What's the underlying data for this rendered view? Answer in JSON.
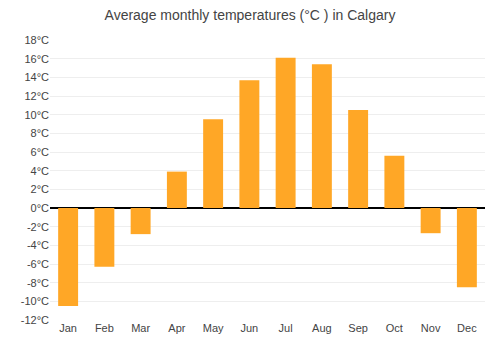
{
  "chart_data": {
    "type": "bar",
    "title": "Average monthly temperatures (°C ) in Calgary",
    "categories": [
      "Jan",
      "Feb",
      "Mar",
      "Apr",
      "May",
      "Jun",
      "Jul",
      "Aug",
      "Sep",
      "Oct",
      "Nov",
      "Dec"
    ],
    "values": [
      -10.5,
      -6.3,
      -2.8,
      3.9,
      9.5,
      13.7,
      16.1,
      15.4,
      10.5,
      5.6,
      -2.7,
      -8.5
    ],
    "color": "#FFA726",
    "ylim": [
      -12,
      18
    ],
    "yticks": [
      {
        "value": -12,
        "label": "-12°C"
      },
      {
        "value": -10,
        "label": "-10°C"
      },
      {
        "value": -8,
        "label": "-8°C"
      },
      {
        "value": -6,
        "label": "-6°C"
      },
      {
        "value": -4,
        "label": "-4°C"
      },
      {
        "value": -2,
        "label": "-2°C"
      },
      {
        "value": 0,
        "label": "0°C"
      },
      {
        "value": 2,
        "label": "2°C"
      },
      {
        "value": 4,
        "label": "4°C"
      },
      {
        "value": 6,
        "label": "6°C"
      },
      {
        "value": 8,
        "label": "8°C"
      },
      {
        "value": 10,
        "label": "10°C"
      },
      {
        "value": 12,
        "label": "12°C"
      },
      {
        "value": 14,
        "label": "14°C"
      },
      {
        "value": 16,
        "label": "16°C"
      },
      {
        "value": 18,
        "label": "18°C"
      }
    ],
    "grid": true
  }
}
